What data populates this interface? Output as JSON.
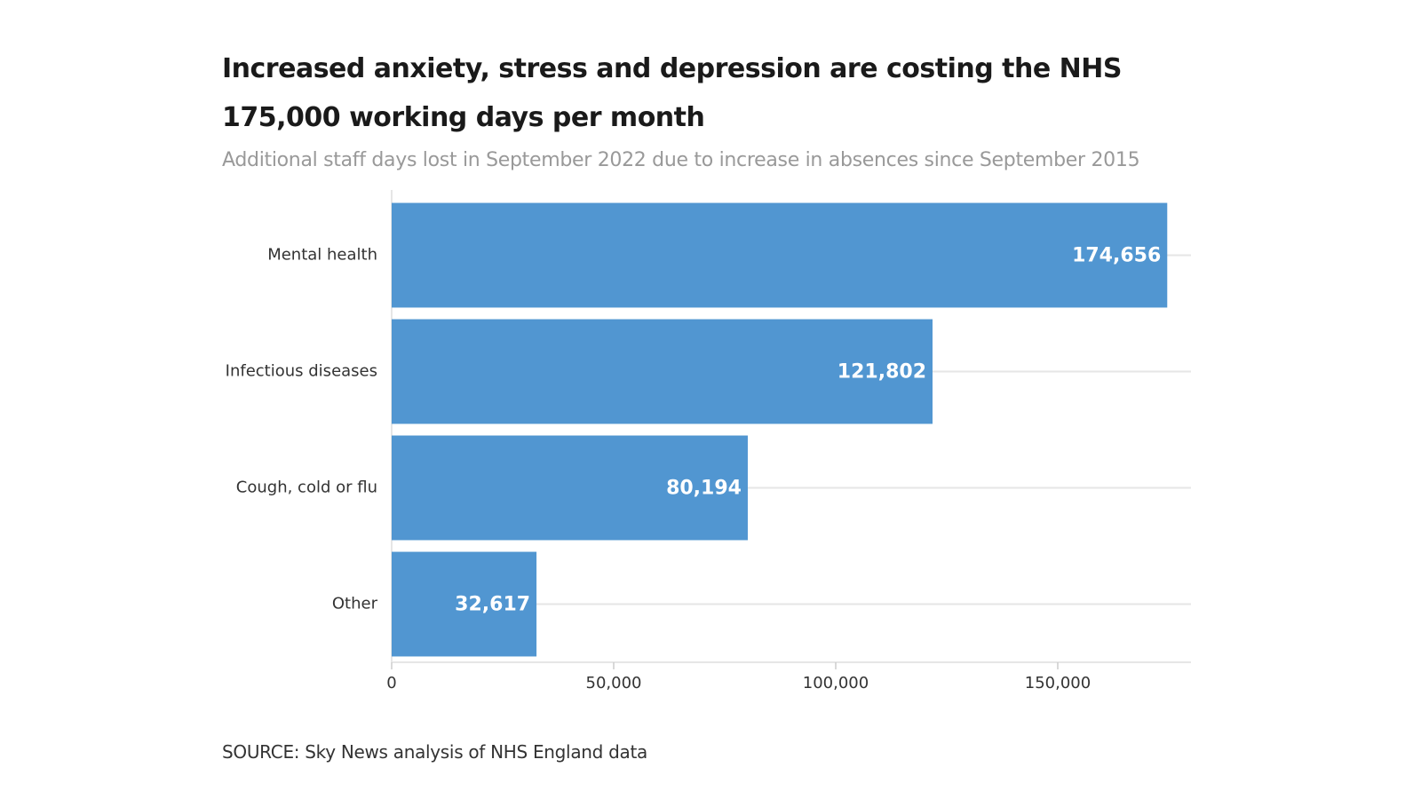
{
  "chart_data": {
    "type": "hbar",
    "title": "Increased anxiety, stress and depression are costing the NHS 175,000 working days per month",
    "subtitle": "Additional staff days lost in September 2022 due to increase in absences since September 2015",
    "source": "SOURCE: Sky News analysis of NHS England data",
    "categories": [
      "Mental health",
      "Infectious diseases",
      "Cough, cold or flu",
      "Other"
    ],
    "values": [
      174656,
      121802,
      80194,
      32617
    ],
    "value_labels": [
      "174,656",
      "121,802",
      "80,194",
      "32,617"
    ],
    "color": "#5196d1",
    "xlim": [
      0,
      180000
    ],
    "xticks": [
      0,
      {
        "value": 50000,
        "label": "50,000"
      },
      {
        "value": 100000,
        "label": "100,000"
      },
      {
        "value": 150000,
        "label": "150,000"
      }
    ]
  }
}
